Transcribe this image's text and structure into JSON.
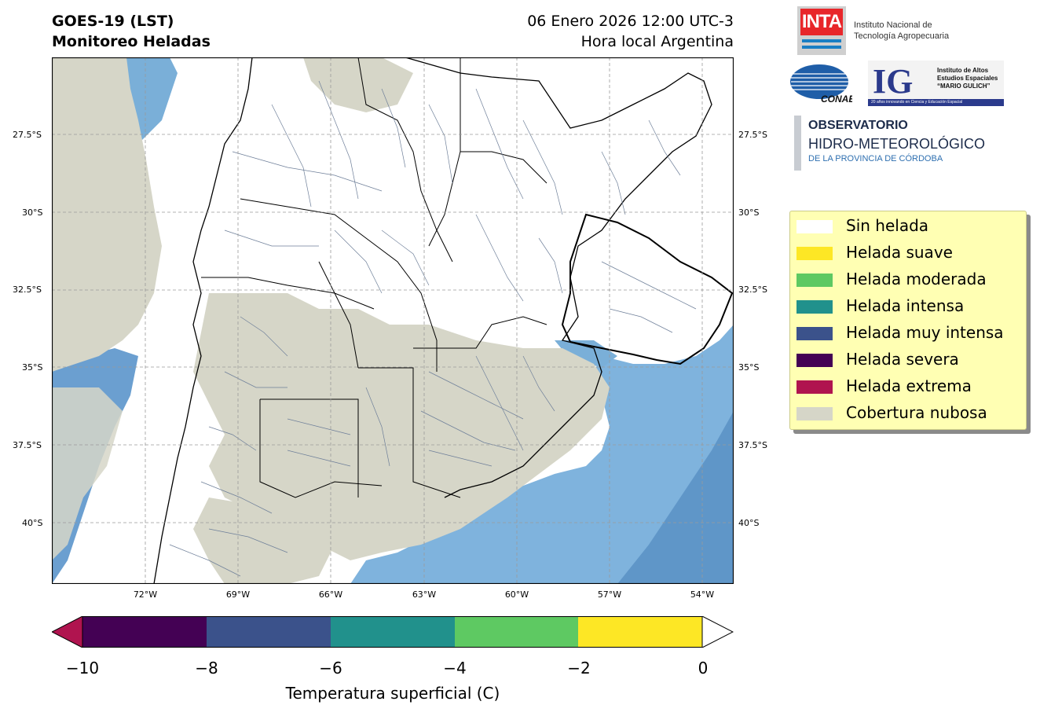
{
  "header": {
    "title_line1": "GOES-19 (LST)",
    "title_line2": "Monitoreo Heladas",
    "date_line": "06 Enero 2026 12:00 UTC-3",
    "local_line": "Hora local Argentina"
  },
  "map": {
    "lat_labels": [
      "27.5°S",
      "30°S",
      "32.5°S",
      "35°S",
      "37.5°S",
      "40°S"
    ],
    "lon_labels": [
      "72°W",
      "69°W",
      "66°W",
      "63°W",
      "60°W",
      "57°W",
      "54°W"
    ],
    "extent": {
      "lon": [
        -75,
        -53
      ],
      "lat": [
        -25,
        -42
      ]
    },
    "colors": {
      "land": "#ffffff",
      "cloud": "#d6d6c8",
      "ocean": "#7aafd8",
      "ocean_deep": "#5f96c8",
      "border": "#000000",
      "dept_border": "#6e7f99",
      "grid": "#9a9a9a"
    }
  },
  "logos": {
    "inta_mark": "INTA",
    "inta_line1": "Instituto Nacional de",
    "inta_line2": "Tecnología Agropecuaria",
    "conae_mark": "CONAE",
    "ig_mark": "IG",
    "ig_line1": "Instituto de Altos",
    "ig_line2": "Estudios Espaciales",
    "ig_line3": "“MARIO GULICH”",
    "ig_strip": "20 años innovando en Ciencia y Educación Espacial",
    "obs_line1": "OBSERVATORIO",
    "obs_line2": "HIDRO-METEOROLÓGICO",
    "obs_line3": "DE LA PROVINCIA DE CÓRDOBA"
  },
  "legend": {
    "items": [
      {
        "label": "Sin helada",
        "color": "#ffffff"
      },
      {
        "label": "Helada suave",
        "color": "#fde725"
      },
      {
        "label": "Helada moderada",
        "color": "#5ec962"
      },
      {
        "label": "Helada intensa",
        "color": "#21918c"
      },
      {
        "label": "Helada muy intensa",
        "color": "#3b528b"
      },
      {
        "label": "Helada severa",
        "color": "#440154"
      },
      {
        "label": "Helada extrema",
        "color": "#b0144f"
      },
      {
        "label": "Cobertura nubosa",
        "color": "#d6d6c8"
      }
    ]
  },
  "colorbar": {
    "ticks": [
      "−10",
      "−8",
      "−6",
      "−4",
      "−2",
      "0"
    ],
    "title": "Temperatura superficial (C)",
    "segments": [
      "#440154",
      "#3b528b",
      "#21918c",
      "#5ec962",
      "#fde725"
    ],
    "under_color": "#b0144f",
    "over_color": "#ffffff"
  }
}
